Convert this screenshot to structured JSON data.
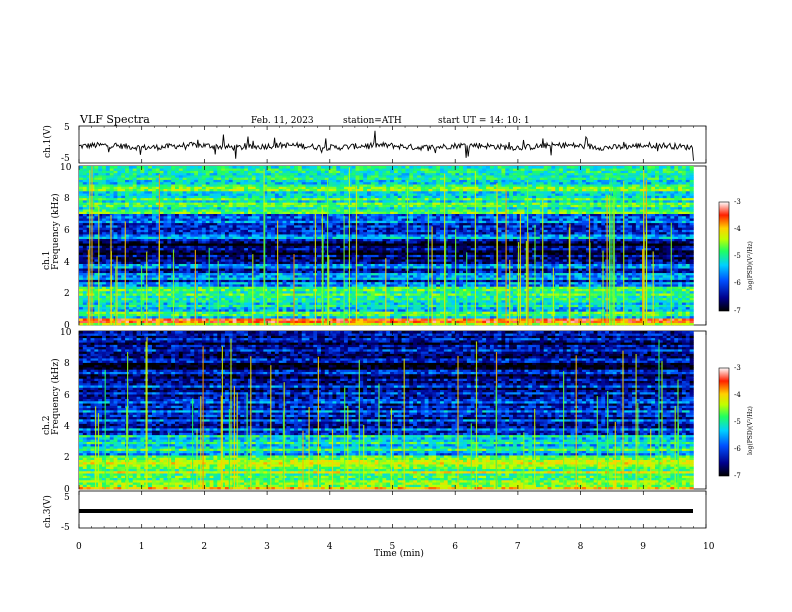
{
  "header": {
    "title": "VLF  Spectra",
    "date": "Feb. 11, 2023",
    "station": "station=ATH",
    "start": "start  UT  =   14: 10: 1"
  },
  "colors": {
    "spectrogram_background": "#00007a",
    "trace": "#000000"
  },
  "chart_data": [
    {
      "name": "ch1-waveform",
      "type": "line",
      "ylabel": "ch.1(V)",
      "ylim": [
        -5,
        5
      ],
      "yticks": [
        "5",
        "-5"
      ],
      "xlim": [
        0,
        10
      ],
      "description_level": "noisy waveform around -0.5 V with frequent spikes",
      "data_end_min": 9.8
    },
    {
      "name": "ch1-spectrogram",
      "type": "heatmap",
      "ylabel": "ch.1\nFrequency (kHz)",
      "ylim": [
        0,
        10
      ],
      "yticks": [
        "0",
        "2",
        "4",
        "6",
        "8",
        "10"
      ],
      "xlim": [
        0,
        10
      ],
      "data_end_min": 9.8,
      "bands": [
        {
          "f_low": 0.0,
          "f_high": 0.4,
          "level": -4.0
        },
        {
          "f_low": 0.4,
          "f_high": 1.9,
          "level": -5.2
        },
        {
          "f_low": 1.9,
          "f_high": 2.5,
          "level": -5.0
        },
        {
          "f_low": 2.5,
          "f_high": 3.8,
          "level": -6.0
        },
        {
          "f_low": 3.8,
          "f_high": 5.3,
          "level": -6.8
        },
        {
          "f_low": 5.3,
          "f_high": 7.0,
          "level": -6.0
        },
        {
          "f_low": 7.0,
          "f_high": 10.0,
          "level": -5.0
        }
      ]
    },
    {
      "name": "ch2-spectrogram",
      "type": "heatmap",
      "ylabel": "ch.2\nFrequency (kHz)",
      "ylim": [
        0,
        10
      ],
      "yticks": [
        "0",
        "2",
        "4",
        "6",
        "8",
        "10"
      ],
      "xlim": [
        0,
        10
      ],
      "data_end_min": 9.8,
      "bands": [
        {
          "f_low": 0.0,
          "f_high": 0.5,
          "level": -4.5
        },
        {
          "f_low": 0.5,
          "f_high": 2.2,
          "level": -4.6
        },
        {
          "f_low": 2.2,
          "f_high": 3.5,
          "level": -5.4
        },
        {
          "f_low": 3.5,
          "f_high": 7.0,
          "level": -6.2
        },
        {
          "f_low": 7.0,
          "f_high": 10.0,
          "level": -6.5
        }
      ]
    },
    {
      "name": "ch3-waveform",
      "type": "line",
      "ylabel": "ch.3(V)",
      "ylim": [
        -5,
        5
      ],
      "yticks": [
        "5",
        "-5"
      ],
      "xlim": [
        0,
        10
      ],
      "level": -1.0,
      "data_end_min": 9.8
    }
  ],
  "xaxis": {
    "label": "Time (min)",
    "ticks": [
      "0",
      "1",
      "2",
      "3",
      "4",
      "5",
      "6",
      "7",
      "8",
      "9",
      "10"
    ]
  },
  "colorbar": {
    "label": "log(PSD)(V²/Hz)",
    "ticks": [
      "-3",
      "-4",
      "-5",
      "-6",
      "-7"
    ],
    "range": [
      -7,
      -3
    ],
    "stops": [
      "#000000",
      "#00008b",
      "#0050ff",
      "#00d0ff",
      "#20ff60",
      "#c0ff00",
      "#ffd000",
      "#ff2000",
      "#ffffff"
    ]
  }
}
